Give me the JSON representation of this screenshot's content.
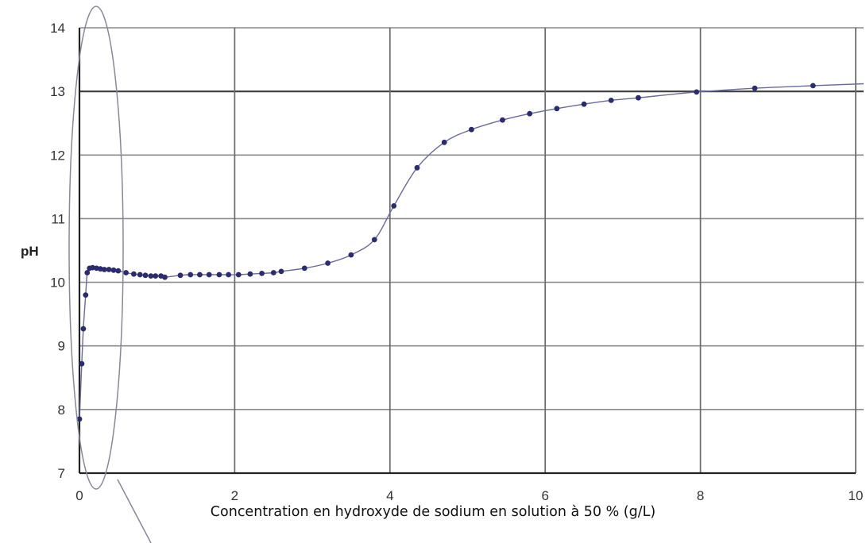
{
  "chart_data": {
    "type": "line",
    "title": "",
    "xlabel": "Concentration en hydroxyde de sodium en solution à 50 % (g/L)",
    "ylabel": "pH",
    "xlim": [
      0,
      10
    ],
    "ylim": [
      7,
      14
    ],
    "x_ticks": [
      "0",
      "2",
      "4",
      "6",
      "8",
      "10"
    ],
    "y_ticks": [
      "7",
      "8",
      "9",
      "10",
      "11",
      "12",
      "13",
      "14"
    ],
    "grid": true,
    "annotation": "ellipse highlighting the initial steep rise near x = 0",
    "series": [
      {
        "markers": true,
        "color": "#2b2b6e",
        "x": [
          0.0,
          0.03,
          0.05,
          0.08,
          0.1,
          0.13,
          0.17,
          0.22,
          0.27,
          0.32,
          0.38,
          0.44,
          0.5,
          0.6,
          0.7,
          0.78,
          0.85,
          0.92,
          0.98,
          1.05,
          1.1,
          1.3,
          1.43,
          1.55,
          1.67,
          1.8,
          1.92,
          2.05,
          2.2,
          2.35,
          2.5,
          2.6,
          2.9,
          3.2,
          3.5,
          3.8,
          4.05,
          4.35,
          4.7,
          5.05,
          5.45,
          5.8,
          6.15,
          6.5,
          6.85,
          7.2,
          7.95,
          8.7,
          9.45
        ],
        "y": [
          7.85,
          8.72,
          9.27,
          9.8,
          10.15,
          10.22,
          10.23,
          10.22,
          10.21,
          10.2,
          10.2,
          10.19,
          10.18,
          10.15,
          10.13,
          10.12,
          10.11,
          10.1,
          10.1,
          10.1,
          10.08,
          10.11,
          10.12,
          10.12,
          10.12,
          10.12,
          10.12,
          10.12,
          10.13,
          10.14,
          10.15,
          10.17,
          10.22,
          10.3,
          10.43,
          10.67,
          11.2,
          11.8,
          12.2,
          12.4,
          12.55,
          12.65,
          12.73,
          12.8,
          12.86,
          12.9,
          12.99,
          13.05,
          13.09
        ]
      }
    ]
  }
}
